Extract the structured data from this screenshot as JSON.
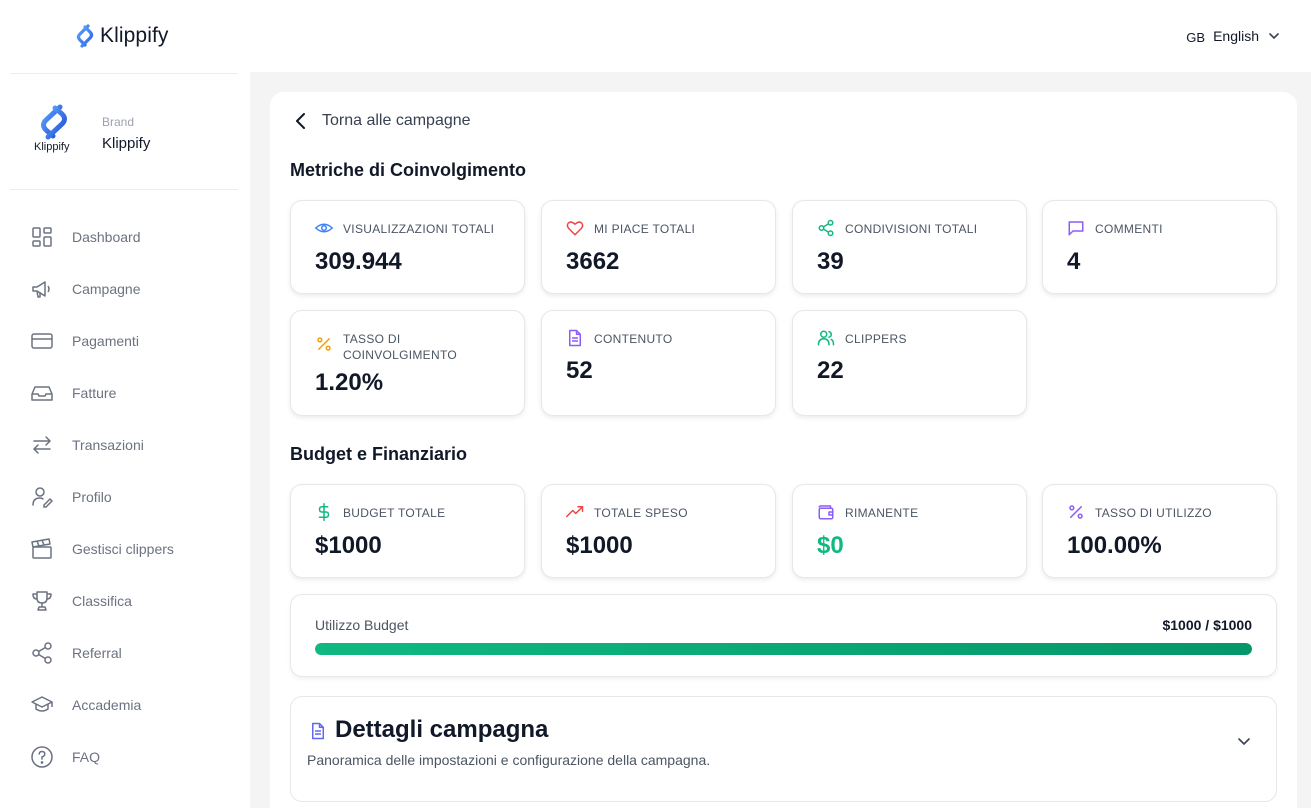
{
  "header": {
    "logo_text": "Klippify",
    "lang_code": "GB",
    "lang_label": "English"
  },
  "brand": {
    "logo_small_text": "Klippify",
    "label": "Brand",
    "name": "Klippify"
  },
  "sidebar": {
    "items": [
      {
        "label": "Dashboard",
        "icon": "dashboard-icon"
      },
      {
        "label": "Campagne",
        "icon": "megaphone-icon"
      },
      {
        "label": "Pagamenti",
        "icon": "credit-card-icon"
      },
      {
        "label": "Fatture",
        "icon": "inbox-icon"
      },
      {
        "label": "Transazioni",
        "icon": "arrows-icon"
      },
      {
        "label": "Profilo",
        "icon": "user-edit-icon"
      },
      {
        "label": "Gestisci clippers",
        "icon": "clapperboard-icon"
      },
      {
        "label": "Classifica",
        "icon": "trophy-icon"
      },
      {
        "label": "Referral",
        "icon": "share-icon"
      },
      {
        "label": "Accademia",
        "icon": "graduation-cap-icon"
      },
      {
        "label": "FAQ",
        "icon": "help-circle-icon"
      }
    ]
  },
  "main": {
    "back_label": "Torna alle campagne",
    "engagement_title": "Metriche di Coinvolgimento",
    "engagement": [
      {
        "label": "VISUALIZZAZIONI TOTALI",
        "value": "309.944",
        "icon": "eye-icon"
      },
      {
        "label": "MI PIACE TOTALI",
        "value": "3662",
        "icon": "heart-icon"
      },
      {
        "label": "CONDIVISIONI TOTALI",
        "value": "39",
        "icon": "share-icon"
      },
      {
        "label": "COMMENTI",
        "value": "4",
        "icon": "comment-icon"
      },
      {
        "label": "TASSO DI COINVOLGIMENTO",
        "value": "1.20%",
        "icon": "percent-icon"
      },
      {
        "label": "CONTENUTO",
        "value": "52",
        "icon": "document-icon"
      },
      {
        "label": "CLIPPERS",
        "value": "22",
        "icon": "users-icon"
      }
    ],
    "budget_title": "Budget e Finanziario",
    "budget": [
      {
        "label": "BUDGET TOTALE",
        "value": "$1000",
        "icon": "dollar-icon"
      },
      {
        "label": "TOTALE SPESO",
        "value": "$1000",
        "icon": "trending-up-icon"
      },
      {
        "label": "RIMANENTE",
        "value": "$0",
        "icon": "wallet-icon"
      },
      {
        "label": "TASSO DI UTILIZZO",
        "value": "100.00%",
        "icon": "percent-icon"
      }
    ],
    "usage": {
      "label": "Utilizzo Budget",
      "value_text": "$1000 / $1000",
      "progress_percent": 100
    },
    "details": {
      "title": "Dettagli campagna",
      "description": "Panoramica delle impostazioni e configurazione della campagna."
    }
  },
  "colors": {
    "accent_green": "#10b981",
    "remaining_value": "#10b981",
    "brand_blue": "#3b82f6"
  }
}
